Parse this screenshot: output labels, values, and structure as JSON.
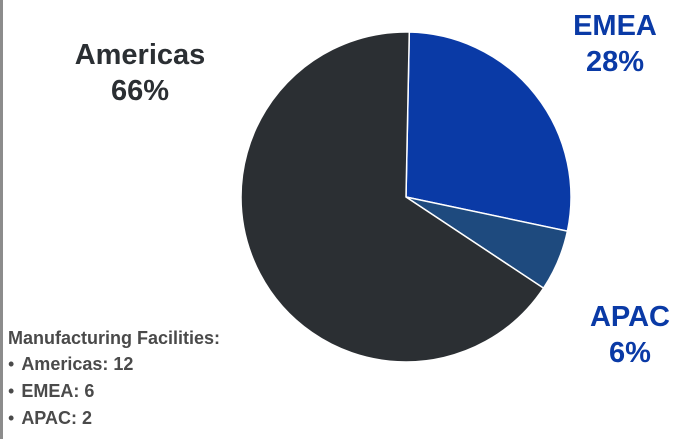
{
  "chart_data": {
    "type": "pie",
    "title": "",
    "slices": [
      {
        "name": "EMEA",
        "value": 28,
        "label": "28%",
        "color": "#0a3aa6"
      },
      {
        "name": "APAC",
        "value": 6,
        "label": "6%",
        "color": "#1e4a7e"
      },
      {
        "name": "Americas",
        "value": 66,
        "label": "66%",
        "color": "#2b2f33"
      }
    ]
  },
  "labels": {
    "americas": {
      "name": "Americas",
      "pct": "66%"
    },
    "emea": {
      "name": "EMEA",
      "pct": "28%"
    },
    "apac": {
      "name": "APAC",
      "pct": "6%"
    }
  },
  "facilities": {
    "title": "Manufacturing Facilities:",
    "bullet": "•",
    "items": [
      "Americas: 12",
      "EMEA: 6",
      "APAC: 2"
    ]
  }
}
